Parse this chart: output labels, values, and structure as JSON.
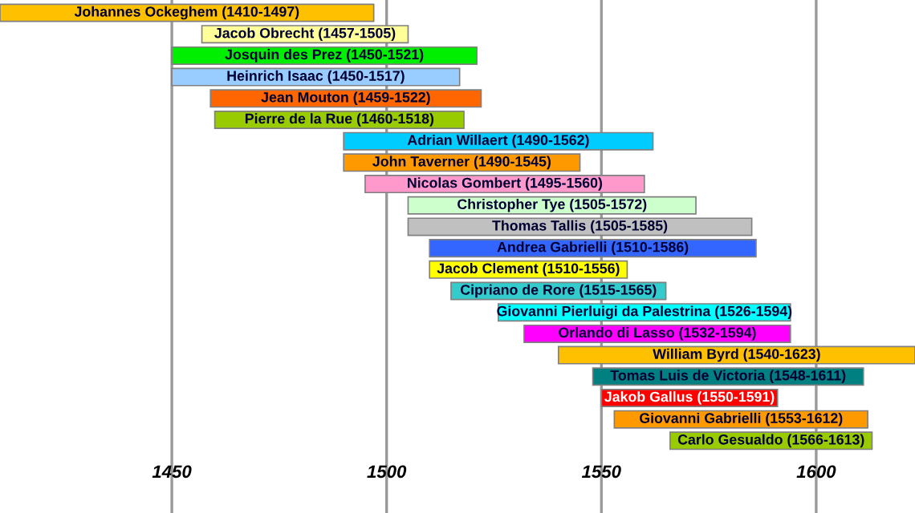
{
  "chart_data": {
    "type": "bar",
    "orientation": "horizontal",
    "tick_labels": "x",
    "grid": "x",
    "categories": [
      "Johannes Ockeghem (1410-1497)",
      "Jacob Obrecht (1457-1505)",
      "Josquin des Prez (1450-1521)",
      "Heinrich Isaac (1450-1517)",
      "Jean Mouton (1459-1522)",
      "Pierre de la Rue (1460-1518)",
      "Adrian Willaert (1490-1562)",
      "John Taverner (1490-1545)",
      "Nicolas Gombert (1495-1560)",
      "Christopher Tye (1505-1572)",
      "Thomas Tallis (1505-1585)",
      "Andrea Gabrielli (1510-1586)",
      "Jacob Clement (1510-1556)",
      "Cipriano de Rore (1515-1565)",
      "Giovanni Pierluigi da Palestrina (1526-1594)",
      "Orlando di Lasso (1532-1594)",
      "William Byrd (1540-1623)",
      "Tomas Luis de Victoria (1548-1611)",
      "Jakob Gallus (1550-1591)",
      "Giovanni Gabrielli (1553-1612)",
      "Carlo Gesualdo (1566-1613)"
    ],
    "base": [
      1410,
      1457,
      1450,
      1450,
      1459,
      1460,
      1490,
      1490,
      1495,
      1505,
      1505,
      1510,
      1510,
      1515,
      1526,
      1532,
      1540,
      1548,
      1550,
      1553,
      1566
    ],
    "values": [
      87,
      48,
      71,
      67,
      63,
      58,
      72,
      55,
      65,
      67,
      80,
      76,
      46,
      50,
      68,
      62,
      83,
      63,
      41,
      59,
      47
    ],
    "colors": [
      "#ffc000",
      "#ffff99",
      "#00ee00",
      "#99ccff",
      "#ff6600",
      "#99cc00",
      "#00ccff",
      "#ff9900",
      "#ff99cc",
      "#ccffcc",
      "#c0c0c0",
      "#3366ff",
      "#ffff00",
      "#33cccc",
      "#00ffff",
      "#ff00ff",
      "#ffc000",
      "#008080",
      "#ff0000",
      "#ff9900",
      "#99cc00"
    ],
    "xlim": [
      1410,
      1623
    ],
    "xticks": [
      1450,
      1500,
      1550,
      1600
    ]
  }
}
